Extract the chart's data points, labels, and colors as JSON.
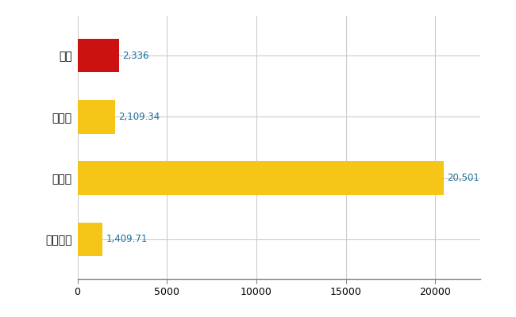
{
  "categories": [
    "北区",
    "県平均",
    "県最大",
    "全国平均"
  ],
  "values": [
    2336,
    2109.34,
    20501,
    1409.71
  ],
  "labels": [
    "2,336",
    "2,109.34",
    "20,501",
    "1,409.71"
  ],
  "colors": [
    "#cc1111",
    "#f5c518",
    "#f5c518",
    "#f5c518"
  ],
  "xlim": [
    0,
    22500
  ],
  "xticks": [
    0,
    5000,
    10000,
    15000,
    20000
  ],
  "background_color": "#ffffff",
  "grid_color": "#cccccc",
  "label_color": "#1a6e9e",
  "label_fontsize": 8.5,
  "tick_fontsize": 9,
  "category_fontsize": 10,
  "bar_height": 0.55
}
